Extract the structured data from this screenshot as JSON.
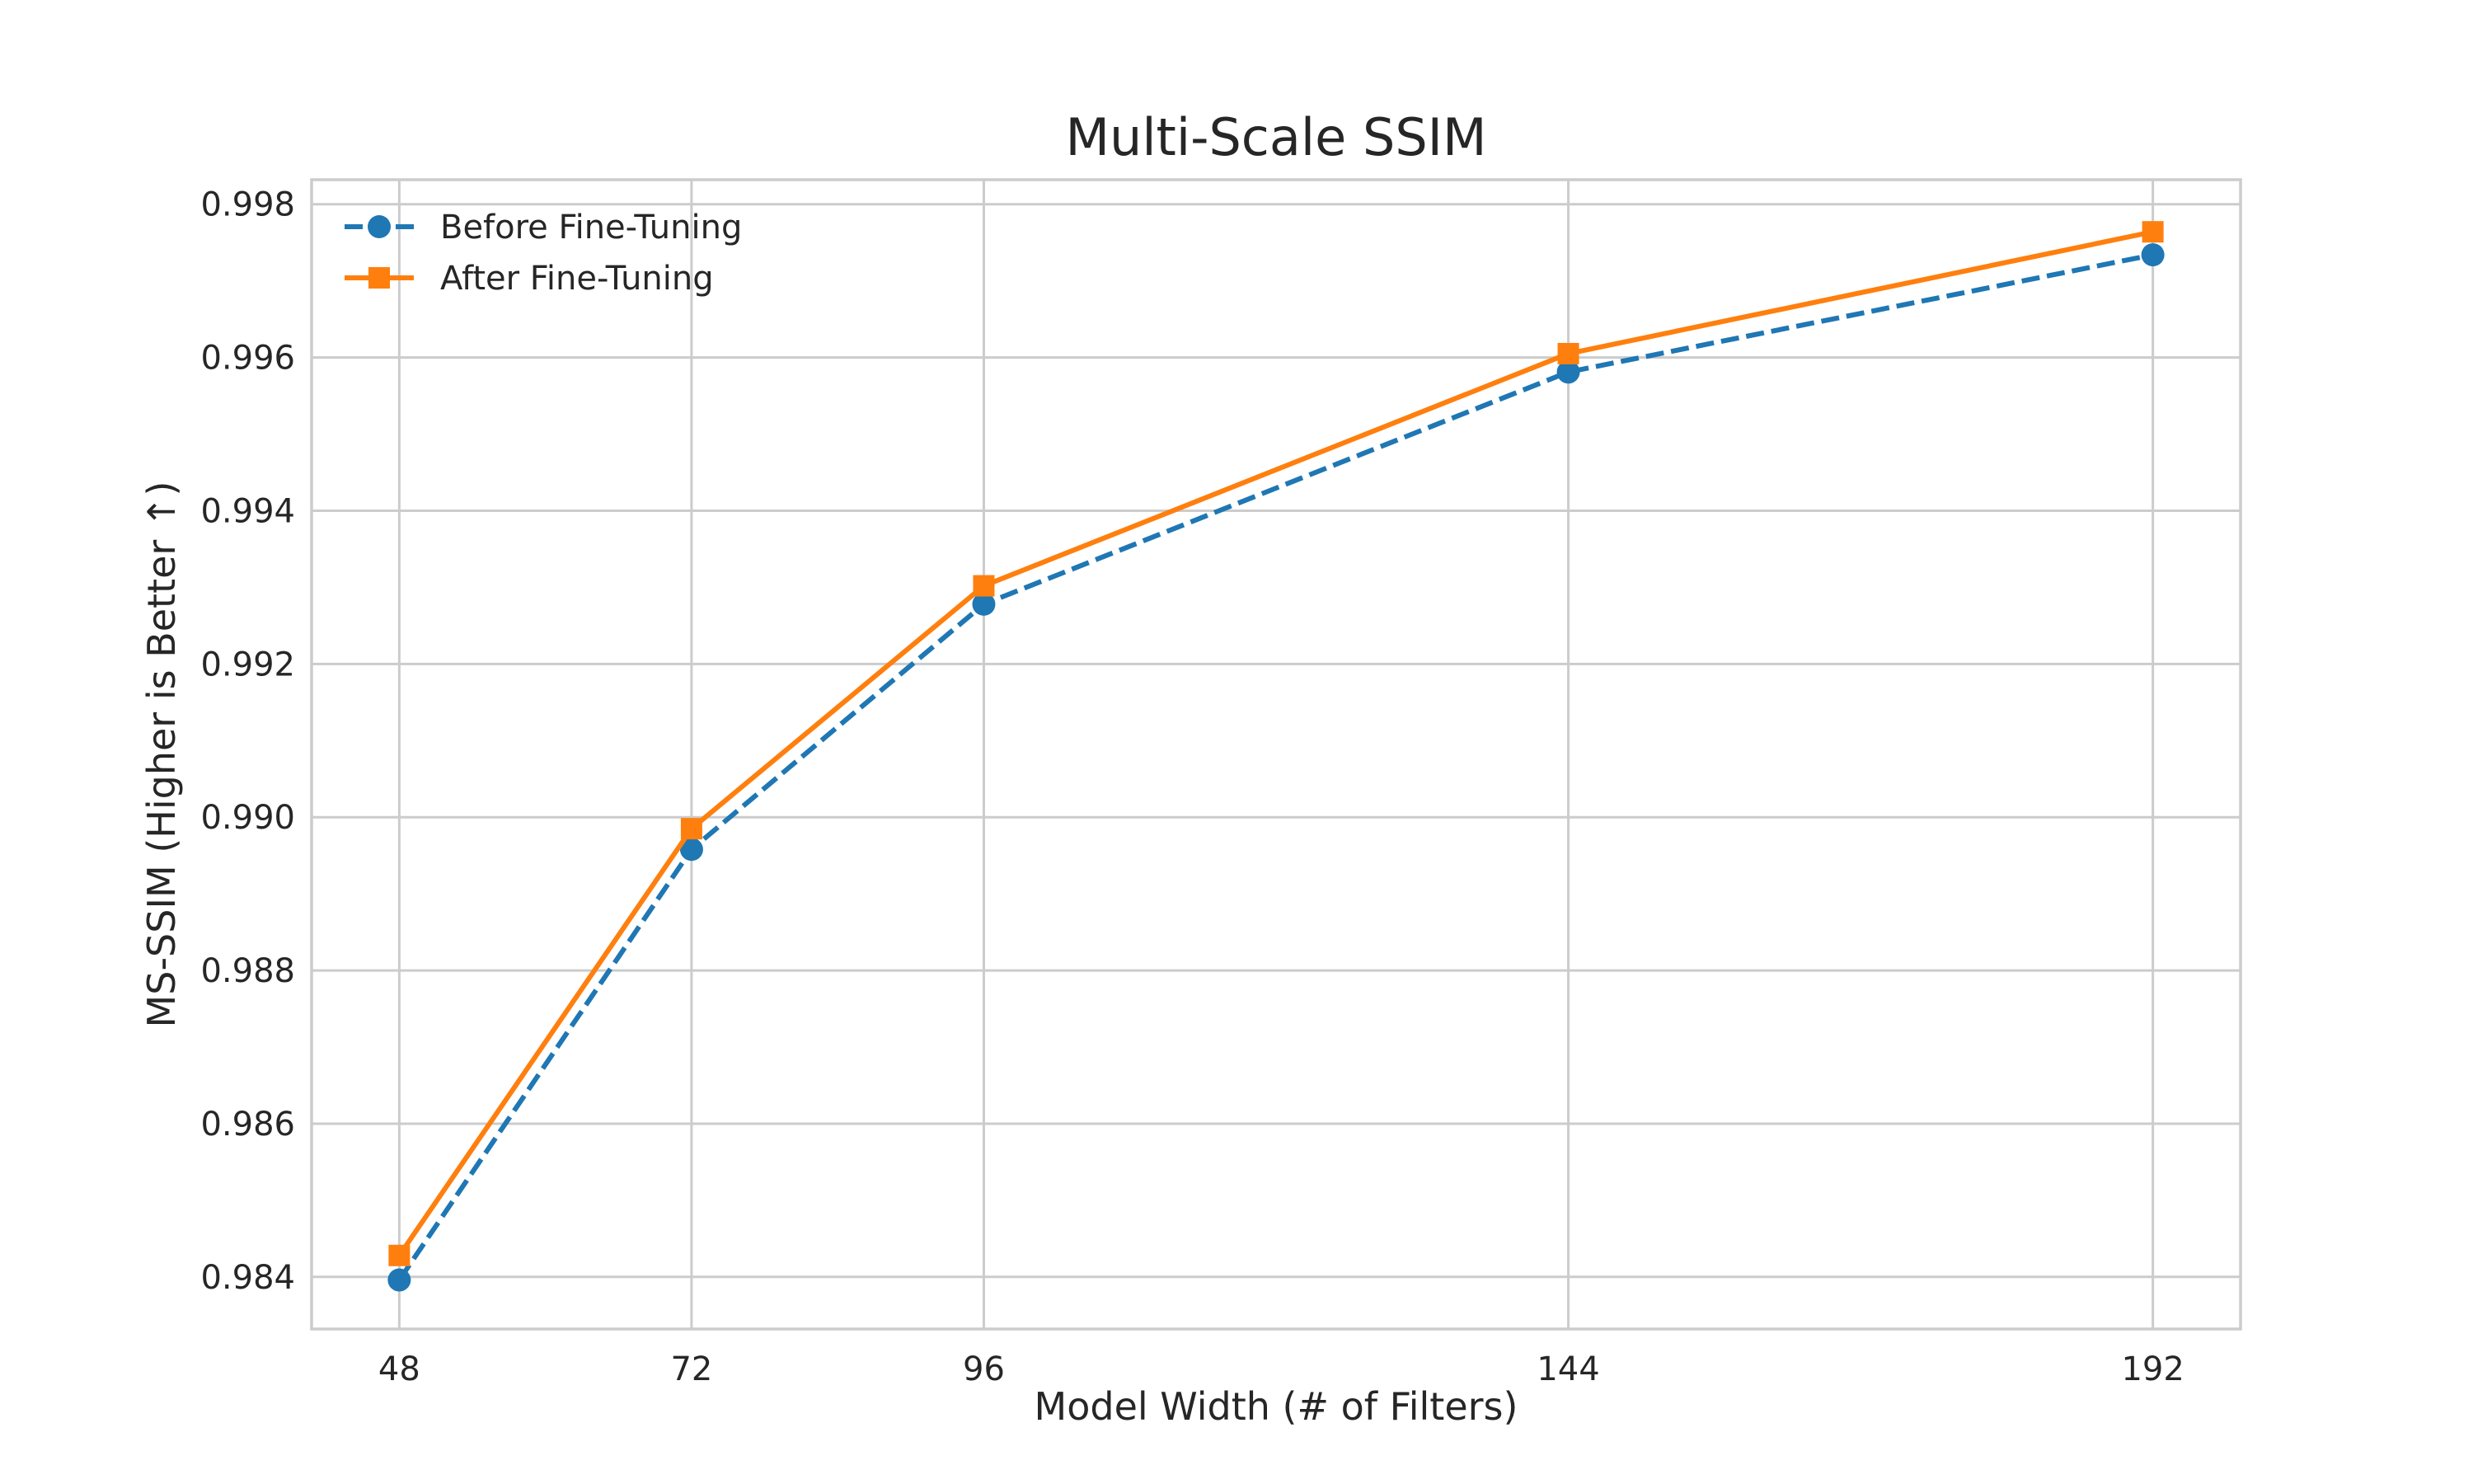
{
  "chart_data": {
    "type": "line",
    "title": "Multi-Scale SSIM",
    "xlabel": "Model Width (# of Filters)",
    "ylabel": "MS-SSIM (Higher is Better ↑)",
    "x": [
      48,
      72,
      96,
      144,
      192
    ],
    "x_tick_labels": [
      "48",
      "72",
      "96",
      "144",
      "192"
    ],
    "xlim": [
      40.8,
      199.2
    ],
    "ylim": [
      0.98332,
      0.99832
    ],
    "y_ticks": [
      0.984,
      0.986,
      0.988,
      0.99,
      0.992,
      0.994,
      0.996,
      0.998
    ],
    "y_tick_labels": [
      "0.984",
      "0.986",
      "0.988",
      "0.990",
      "0.992",
      "0.994",
      "0.996",
      "0.998"
    ],
    "grid": true,
    "legend_position": "top-left",
    "series": [
      {
        "name": "Before Fine-Tuning",
        "values": [
          0.98396,
          0.98958,
          0.99278,
          0.99581,
          0.99734
        ],
        "color": "#1f77b4",
        "line_style": "dashed",
        "marker": "circle"
      },
      {
        "name": "After Fine-Tuning",
        "values": [
          0.98428,
          0.98985,
          0.99302,
          0.99605,
          0.99764
        ],
        "color": "#ff7f0e",
        "line_style": "solid",
        "marker": "square"
      }
    ]
  }
}
